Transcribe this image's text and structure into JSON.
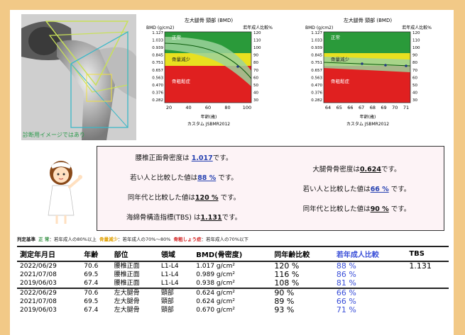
{
  "xray": {
    "caption": "診断用イメージではあり"
  },
  "charts": [
    {
      "title": "左大腿骨 頸部 (BMD)",
      "left_unit": "BMD (g/cm2)",
      "right_unit": "若年成人比較%",
      "y_labels": [
        "1.127",
        "1.033",
        "0.939",
        "0.845",
        "0.751",
        "0.657",
        "0.563",
        "0.470",
        "0.376",
        "0.282"
      ],
      "pct_labels": [
        "120",
        "110",
        "100",
        "90",
        "80",
        "70",
        "60",
        "50",
        "40",
        "30"
      ],
      "x_labels": [
        "20",
        "40",
        "60",
        "80",
        "100"
      ],
      "xlabel": "年齢(歳)",
      "reference": "カスタム JSBMR2012",
      "zone_labels": [
        "正常",
        "骨量減少",
        "骨粗鬆症"
      ]
    },
    {
      "title": "左大腿骨 頸部 (BMD)",
      "left_unit": "BMD (g/cm2)",
      "right_unit": "若年成人比較%",
      "y_labels": [
        "1.127",
        "1.033",
        "0.939",
        "0.845",
        "0.751",
        "0.657",
        "0.563",
        "0.470",
        "0.376",
        "0.282"
      ],
      "pct_labels": [
        "120",
        "110",
        "100",
        "90",
        "80",
        "70",
        "60",
        "50",
        "40",
        "30"
      ],
      "x_labels": [
        "64",
        "65",
        "66",
        "67",
        "68",
        "69",
        "70",
        "71"
      ],
      "xlabel": "年齢(歳)",
      "reference": "カスタム JSBMR2012",
      "zone_labels": [
        "正常",
        "骨量減少",
        "骨粗鬆症"
      ]
    }
  ],
  "result_left": {
    "line1_pre": "腰椎正面骨密度は ",
    "line1_val": "1.017",
    "line1_post": "です。",
    "line2_pre": "若い人と比較した値は",
    "line2_val": "88 %",
    "line2_post": " です。",
    "line3_pre": "同年代と比較した値は",
    "line3_val": "120 %",
    "line3_post": " です。",
    "line4_pre": "海綿骨構造指標(TBS) は",
    "line4_val": "1.131",
    "line4_post": "です。"
  },
  "result_right": {
    "line1_pre": "大腿骨骨密度は",
    "line1_val": "0.624",
    "line1_post": "です。",
    "line2_pre": "若い人と比較した値は",
    "line2_val": "66 %",
    "line2_post": " です。",
    "line3_pre": "同年代と比較した値は",
    "line3_val": "90 %",
    "line3_post": " です。"
  },
  "legend": {
    "label": "判定基準",
    "normal_key": "正 常",
    "normal_text": "：若年成人の80%以上",
    "reduced_key": "骨量減少",
    "reduced_text": "：若年成人の70%〜80%",
    "care_key": "骨粗しょう症",
    "care_text": "：若年成人の70%以下",
    "colors": {
      "normal": "#2a8a3a",
      "reduced": "#e0a000",
      "care": "#d22020"
    }
  },
  "table": {
    "headers": [
      "測定年月日",
      "年齢",
      "部位",
      "領域",
      "BMD(骨密度)",
      "同年齢比較",
      "若年成人比較",
      "TBS"
    ],
    "group1": [
      [
        "2022/06/29",
        "70.6",
        "腰椎正面",
        "L1-L4",
        "1.017 g/cm²",
        "120 %",
        "88 %",
        "1.131"
      ],
      [
        "2021/07/08",
        "69.5",
        "腰椎正面",
        "L1-L4",
        "0.989 g/cm²",
        "116 %",
        "86 %",
        ""
      ],
      [
        "2019/06/03",
        "67.4",
        "腰椎正面",
        "L1-L4",
        "0.938 g/cm²",
        "108 %",
        "81 %",
        ""
      ]
    ],
    "group2": [
      [
        "2022/06/29",
        "70.6",
        "左大腿骨",
        "頸部",
        "0.624 g/cm²",
        "90 %",
        "66 %",
        ""
      ],
      [
        "2021/07/08",
        "69.5",
        "左大腿骨",
        "頸部",
        "0.624 g/cm²",
        "89 %",
        "66 %",
        ""
      ],
      [
        "2019/06/03",
        "67.4",
        "左大腿骨",
        "頸部",
        "0.670 g/cm²",
        "93 %",
        "71 %",
        ""
      ]
    ]
  }
}
